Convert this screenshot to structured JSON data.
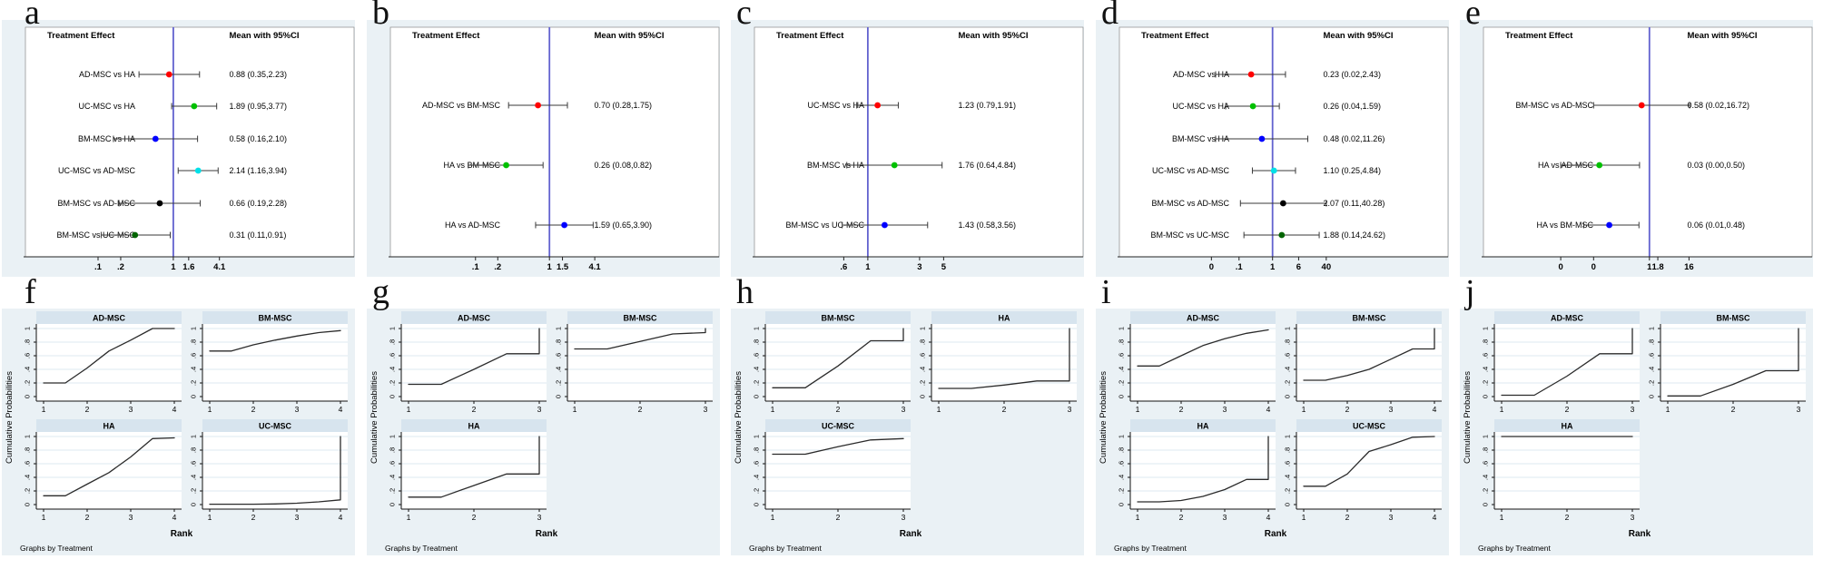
{
  "colors": {
    "panel_bg": "#eaf1f5",
    "strip_bg": "#d7e4ee",
    "grid_line": "#dde8f1",
    "ref_line": "#6262cf",
    "curve": "#2b2b2b",
    "whisker": "#3a3a3a",
    "marker_red": "#ff0000",
    "marker_green": "#00c000",
    "marker_blue": "#0000ff",
    "marker_cyan": "#00e0e8",
    "marker_black": "#000000",
    "marker_darkgreen": "#006400"
  },
  "chart_data": [
    {
      "panel": "a",
      "type": "forest",
      "title_left": "Treatment Effect",
      "title_right": "Mean with 95%CI",
      "ref_value": 1,
      "scale": "log",
      "rows": [
        {
          "label": "AD-MSC vs HA",
          "mean": 0.88,
          "ci_low": 0.35,
          "ci_high": 2.23,
          "display": "0.88 (0.35,2.23)",
          "color": "#ff0000"
        },
        {
          "label": "UC-MSC vs HA",
          "mean": 1.89,
          "ci_low": 0.95,
          "ci_high": 3.77,
          "display": "1.89 (0.95,3.77)",
          "color": "#00c000"
        },
        {
          "label": "BM-MSC vs HA",
          "mean": 0.58,
          "ci_low": 0.16,
          "ci_high": 2.1,
          "display": "0.58 (0.16,2.10)",
          "color": "#0000ff"
        },
        {
          "label": "UC-MSC vs AD-MSC",
          "mean": 2.14,
          "ci_low": 1.16,
          "ci_high": 3.94,
          "display": "2.14 (1.16,3.94)",
          "color": "#00e0e8"
        },
        {
          "label": "BM-MSC vs AD-MSC",
          "mean": 0.66,
          "ci_low": 0.19,
          "ci_high": 2.28,
          "display": "0.66 (0.19,2.28)",
          "color": "#000000"
        },
        {
          "label": "BM-MSC vs UC-MSC",
          "mean": 0.31,
          "ci_low": 0.11,
          "ci_high": 0.91,
          "display": "0.31 (0.11,0.91)",
          "color": "#006400"
        }
      ],
      "x_ticks": [
        {
          "value": 0.1,
          "label": ".1"
        },
        {
          "value": 0.2,
          "label": ".2"
        },
        {
          "value": 1,
          "label": "1"
        },
        {
          "value": 1.6,
          "label": "1.6"
        },
        {
          "value": 4.1,
          "label": "4.1"
        }
      ]
    },
    {
      "panel": "b",
      "type": "forest",
      "title_left": "Treatment Effect",
      "title_right": "Mean with 95%CI",
      "ref_value": 1,
      "scale": "log",
      "rows": [
        {
          "label": "AD-MSC vs BM-MSC",
          "mean": 0.7,
          "ci_low": 0.28,
          "ci_high": 1.75,
          "display": "0.70 (0.28,1.75)",
          "color": "#ff0000"
        },
        {
          "label": "HA vs BM-MSC",
          "mean": 0.26,
          "ci_low": 0.08,
          "ci_high": 0.82,
          "display": "0.26 (0.08,0.82)",
          "color": "#00c000"
        },
        {
          "label": "HA vs AD-MSC",
          "mean": 1.59,
          "ci_low": 0.65,
          "ci_high": 3.9,
          "display": "1.59 (0.65,3.90)",
          "color": "#0000ff"
        }
      ],
      "x_ticks": [
        {
          "value": 0.1,
          "label": ".1"
        },
        {
          "value": 0.2,
          "label": ".2"
        },
        {
          "value": 1,
          "label": "1"
        },
        {
          "value": 1.5,
          "label": "1.5"
        },
        {
          "value": 4.1,
          "label": "4.1"
        }
      ]
    },
    {
      "panel": "c",
      "type": "forest",
      "title_left": "Treatment Effect",
      "title_right": "Mean with 95%CI",
      "ref_value": 1,
      "scale": "log",
      "rows": [
        {
          "label": "UC-MSC vs HA",
          "mean": 1.23,
          "ci_low": 0.79,
          "ci_high": 1.91,
          "display": "1.23 (0.79,1.91)",
          "color": "#ff0000"
        },
        {
          "label": "BM-MSC vs HA",
          "mean": 1.76,
          "ci_low": 0.64,
          "ci_high": 4.84,
          "display": "1.76 (0.64,4.84)",
          "color": "#00c000"
        },
        {
          "label": "BM-MSC vs UC-MSC",
          "mean": 1.43,
          "ci_low": 0.58,
          "ci_high": 3.56,
          "display": "1.43 (0.58,3.56)",
          "color": "#0000ff"
        }
      ],
      "x_ticks": [
        {
          "value": 0.6,
          "label": ".6"
        },
        {
          "value": 1,
          "label": "1"
        },
        {
          "value": 3,
          "label": "3"
        },
        {
          "value": 5,
          "label": "5"
        }
      ]
    },
    {
      "panel": "d",
      "type": "forest",
      "title_left": "Treatment Effect",
      "title_right": "Mean with 95%CI",
      "ref_value": 1,
      "scale": "log",
      "rows": [
        {
          "label": "AD-MSC vs HA",
          "mean": 0.23,
          "ci_low": 0.02,
          "ci_high": 2.43,
          "display": "0.23 (0.02,2.43)",
          "color": "#ff0000"
        },
        {
          "label": "UC-MSC vs HA",
          "mean": 0.26,
          "ci_low": 0.04,
          "ci_high": 1.59,
          "display": "0.26 (0.04,1.59)",
          "color": "#00c000"
        },
        {
          "label": "BM-MSC vs HA",
          "mean": 0.48,
          "ci_low": 0.02,
          "ci_high": 11.26,
          "display": "0.48 (0.02,11.26)",
          "color": "#0000ff"
        },
        {
          "label": "UC-MSC vs AD-MSC",
          "mean": 1.1,
          "ci_low": 0.25,
          "ci_high": 4.84,
          "display": "1.10 (0.25,4.84)",
          "color": "#00e0e8"
        },
        {
          "label": "BM-MSC vs AD-MSC",
          "mean": 2.07,
          "ci_low": 0.11,
          "ci_high": 40.28,
          "display": "2.07 (0.11,40.28)",
          "color": "#000000"
        },
        {
          "label": "BM-MSC vs UC-MSC",
          "mean": 1.88,
          "ci_low": 0.14,
          "ci_high": 24.62,
          "display": "1.88 (0.14,24.62)",
          "color": "#006400"
        }
      ],
      "x_ticks": [
        {
          "value": 0.015,
          "label": "0"
        },
        {
          "value": 0.1,
          "label": ".1"
        },
        {
          "value": 1,
          "label": "1"
        },
        {
          "value": 6,
          "label": "6"
        },
        {
          "value": 40,
          "label": "40"
        }
      ]
    },
    {
      "panel": "e",
      "type": "forest",
      "title_left": "Treatment Effect",
      "title_right": "Mean with 95%CI",
      "ref_value": 1,
      "scale": "log",
      "rows": [
        {
          "label": "BM-MSC vs AD-MSC",
          "mean": 0.58,
          "ci_low": 0.02,
          "ci_high": 16.72,
          "display": "0.58 (0.02,16.72)",
          "color": "#ff0000"
        },
        {
          "label": "HA vs AD-MSC",
          "mean": 0.03,
          "ci_low": 0.0,
          "ci_high": 0.5,
          "display": "0.03 (0.00,0.50)",
          "color": "#00c000"
        },
        {
          "label": "HA vs BM-MSC",
          "mean": 0.06,
          "ci_low": 0.01,
          "ci_high": 0.48,
          "display": "0.06 (0.01,0.48)",
          "color": "#0000ff"
        }
      ],
      "x_ticks": [
        {
          "value": 0.002,
          "label": "0"
        },
        {
          "value": 0.02,
          "label": "0"
        },
        {
          "value": 1,
          "label": "1"
        },
        {
          "value": 1.8,
          "label": "1.8"
        },
        {
          "value": 16,
          "label": "16"
        }
      ]
    },
    {
      "panel": "f",
      "type": "rank",
      "ylabel": "Cumulative Probabilities",
      "xlabel": "Rank",
      "note": "Graphs by Treatment",
      "grid": [
        [
          "AD-MSC",
          "BM-MSC"
        ],
        [
          "HA",
          "UC-MSC"
        ]
      ],
      "x_ticks": [
        1,
        2,
        3,
        4
      ],
      "y_ticks": [
        "0",
        ".2",
        ".4",
        ".6",
        ".8",
        "1"
      ],
      "series": {
        "AD-MSC": [
          [
            1,
            0.2
          ],
          [
            1.5,
            0.2
          ],
          [
            2,
            0.42
          ],
          [
            2.5,
            0.67
          ],
          [
            3,
            0.83
          ],
          [
            3.5,
            1
          ],
          [
            4,
            1
          ]
        ],
        "BM-MSC": [
          [
            1,
            0.67
          ],
          [
            1.5,
            0.67
          ],
          [
            2,
            0.76
          ],
          [
            2.5,
            0.83
          ],
          [
            3,
            0.89
          ],
          [
            3.5,
            0.94
          ],
          [
            4,
            0.97
          ]
        ],
        "HA": [
          [
            1,
            0.13
          ],
          [
            1.5,
            0.13
          ],
          [
            2,
            0.3
          ],
          [
            2.5,
            0.47
          ],
          [
            3,
            0.7
          ],
          [
            3.5,
            0.97
          ],
          [
            4,
            0.98
          ]
        ],
        "UC-MSC": [
          [
            1,
            0.005
          ],
          [
            2,
            0.005
          ],
          [
            2.5,
            0.01
          ],
          [
            3,
            0.02
          ],
          [
            3.5,
            0.04
          ],
          [
            4,
            0.07
          ],
          [
            4,
            1
          ]
        ]
      }
    },
    {
      "panel": "g",
      "type": "rank",
      "ylabel": "Cumulative Probabilities",
      "xlabel": "Rank",
      "note": "Graphs by Treatment",
      "grid": [
        [
          "AD-MSC",
          "BM-MSC"
        ],
        [
          "HA",
          null
        ]
      ],
      "x_ticks": [
        1,
        2,
        3
      ],
      "y_ticks": [
        "0",
        ".2",
        ".4",
        ".6",
        ".8",
        "1"
      ],
      "series": {
        "AD-MSC": [
          [
            1,
            0.18
          ],
          [
            1.5,
            0.18
          ],
          [
            2,
            0.4
          ],
          [
            2.5,
            0.63
          ],
          [
            3,
            0.63
          ],
          [
            3,
            1
          ]
        ],
        "BM-MSC": [
          [
            1,
            0.7
          ],
          [
            1.5,
            0.7
          ],
          [
            2,
            0.81
          ],
          [
            2.5,
            0.92
          ],
          [
            3,
            0.94
          ],
          [
            3,
            1
          ]
        ],
        "HA": [
          [
            1,
            0.11
          ],
          [
            1.5,
            0.11
          ],
          [
            2,
            0.28
          ],
          [
            2.5,
            0.45
          ],
          [
            3,
            0.45
          ],
          [
            3,
            1
          ]
        ]
      }
    },
    {
      "panel": "h",
      "type": "rank",
      "ylabel": "Cumulative Probabilities",
      "xlabel": "Rank",
      "note": "Graphs by Treatment",
      "grid": [
        [
          "BM-MSC",
          "HA"
        ],
        [
          "UC-MSC",
          null
        ]
      ],
      "x_ticks": [
        1,
        2,
        3
      ],
      "y_ticks": [
        "0",
        ".2",
        ".4",
        ".6",
        ".8",
        "1"
      ],
      "series": {
        "BM-MSC": [
          [
            1,
            0.13
          ],
          [
            1.5,
            0.13
          ],
          [
            2,
            0.45
          ],
          [
            2.5,
            0.82
          ],
          [
            3,
            0.82
          ],
          [
            3,
            1
          ]
        ],
        "HA": [
          [
            1,
            0.12
          ],
          [
            1.5,
            0.12
          ],
          [
            2,
            0.17
          ],
          [
            2.5,
            0.23
          ],
          [
            3,
            0.23
          ],
          [
            3,
            1
          ]
        ],
        "UC-MSC": [
          [
            1,
            0.74
          ],
          [
            1.5,
            0.74
          ],
          [
            2,
            0.85
          ],
          [
            2.5,
            0.95
          ],
          [
            3,
            0.97
          ]
        ]
      }
    },
    {
      "panel": "i",
      "type": "rank",
      "ylabel": "Cumulative Probabilities",
      "xlabel": "Rank",
      "note": "Graphs by Treatment",
      "grid": [
        [
          "AD-MSC",
          "BM-MSC"
        ],
        [
          "HA",
          "UC-MSC"
        ]
      ],
      "x_ticks": [
        1,
        2,
        3,
        4
      ],
      "y_ticks": [
        "0",
        ".2",
        ".4",
        ".6",
        ".8",
        "1"
      ],
      "series": {
        "AD-MSC": [
          [
            1,
            0.45
          ],
          [
            1.5,
            0.45
          ],
          [
            2,
            0.6
          ],
          [
            2.5,
            0.75
          ],
          [
            3,
            0.85
          ],
          [
            3.5,
            0.93
          ],
          [
            4,
            0.98
          ]
        ],
        "BM-MSC": [
          [
            1,
            0.24
          ],
          [
            1.5,
            0.24
          ],
          [
            2,
            0.31
          ],
          [
            2.5,
            0.4
          ],
          [
            3,
            0.55
          ],
          [
            3.5,
            0.7
          ],
          [
            4,
            0.7
          ],
          [
            4,
            1
          ]
        ],
        "HA": [
          [
            1,
            0.04
          ],
          [
            1.5,
            0.04
          ],
          [
            2,
            0.06
          ],
          [
            2.5,
            0.12
          ],
          [
            3,
            0.22
          ],
          [
            3.5,
            0.37
          ],
          [
            4,
            0.37
          ],
          [
            4,
            1
          ]
        ],
        "UC-MSC": [
          [
            1,
            0.27
          ],
          [
            1.5,
            0.27
          ],
          [
            2,
            0.45
          ],
          [
            2.5,
            0.78
          ],
          [
            3,
            0.88
          ],
          [
            3.5,
            0.99
          ],
          [
            4,
            1
          ]
        ]
      }
    },
    {
      "panel": "j",
      "type": "rank",
      "ylabel": "Cumulative Probabilities",
      "xlabel": "Rank",
      "note": "Graphs by Treatment",
      "grid": [
        [
          "AD-MSC",
          "BM-MSC"
        ],
        [
          "HA",
          null
        ]
      ],
      "x_ticks": [
        1,
        2,
        3
      ],
      "y_ticks": [
        "0",
        ".2",
        ".4",
        ".6",
        ".8",
        "1"
      ],
      "series": {
        "AD-MSC": [
          [
            1,
            0.02
          ],
          [
            1.5,
            0.02
          ],
          [
            2,
            0.3
          ],
          [
            2.5,
            0.63
          ],
          [
            3,
            0.63
          ],
          [
            3,
            1
          ]
        ],
        "BM-MSC": [
          [
            1,
            0.01
          ],
          [
            1.5,
            0.01
          ],
          [
            2,
            0.18
          ],
          [
            2.5,
            0.38
          ],
          [
            3,
            0.38
          ],
          [
            3,
            1
          ]
        ],
        "HA": [
          [
            1,
            1
          ],
          [
            3,
            1
          ]
        ]
      }
    }
  ]
}
